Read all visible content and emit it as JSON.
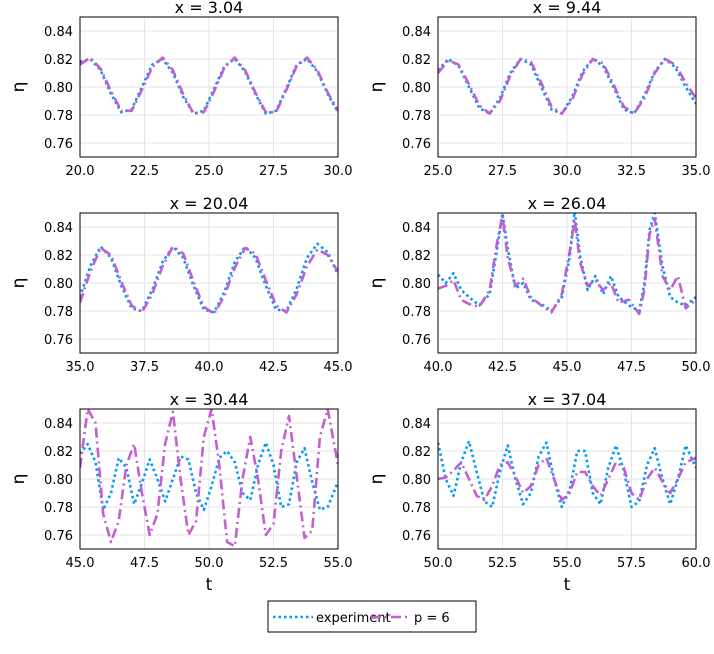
{
  "chart_data": [
    {
      "type": "line",
      "title": "x = 3.04",
      "xlabel": "",
      "ylabel": "η",
      "xlim": [
        20,
        30
      ],
      "ylim": [
        0.75,
        0.85
      ],
      "xticks": [
        "20.0",
        "22.5",
        "25.0",
        "27.5",
        "30.0"
      ],
      "yticks": [
        "0.76",
        "0.78",
        "0.80",
        "0.82",
        "0.84"
      ],
      "series": [
        {
          "name": "experiment",
          "color": "#009af9",
          "style": "dotted",
          "x": [
            20.0,
            20.4,
            20.8,
            21.2,
            21.6,
            22.0,
            22.4,
            22.8,
            23.2,
            23.6,
            24.0,
            24.4,
            24.8,
            25.2,
            25.6,
            26.0,
            26.4,
            26.8,
            27.2,
            27.6,
            28.0,
            28.4,
            28.8,
            29.2,
            29.6,
            30.0
          ],
          "y": [
            0.818,
            0.82,
            0.812,
            0.795,
            0.782,
            0.784,
            0.8,
            0.816,
            0.82,
            0.81,
            0.793,
            0.781,
            0.783,
            0.799,
            0.815,
            0.82,
            0.811,
            0.795,
            0.781,
            0.783,
            0.799,
            0.816,
            0.82,
            0.811,
            0.795,
            0.782
          ]
        },
        {
          "name": "p = 6",
          "color": "#c35fcf",
          "style": "dashdot",
          "x": [
            20.0,
            20.4,
            20.8,
            21.2,
            21.6,
            22.0,
            22.4,
            22.8,
            23.2,
            23.6,
            24.0,
            24.4,
            24.8,
            25.2,
            25.6,
            26.0,
            26.4,
            26.8,
            27.2,
            27.6,
            28.0,
            28.4,
            28.8,
            29.2,
            29.6,
            30.0
          ],
          "y": [
            0.816,
            0.821,
            0.813,
            0.797,
            0.783,
            0.783,
            0.798,
            0.814,
            0.821,
            0.812,
            0.795,
            0.781,
            0.782,
            0.797,
            0.814,
            0.821,
            0.812,
            0.796,
            0.782,
            0.782,
            0.798,
            0.815,
            0.821,
            0.812,
            0.796,
            0.783
          ]
        }
      ]
    },
    {
      "type": "line",
      "title": "x = 9.44",
      "xlabel": "",
      "ylabel": "η",
      "xlim": [
        25,
        35
      ],
      "ylim": [
        0.75,
        0.85
      ],
      "xticks": [
        "25.0",
        "27.5",
        "30.0",
        "32.5",
        "35.0"
      ],
      "yticks": [
        "0.76",
        "0.78",
        "0.80",
        "0.82",
        "0.84"
      ],
      "series": [
        {
          "name": "experiment",
          "color": "#009af9",
          "style": "dotted",
          "x": [
            25.0,
            25.4,
            25.8,
            26.2,
            26.6,
            27.0,
            27.4,
            27.8,
            28.2,
            28.6,
            29.0,
            29.4,
            29.8,
            30.2,
            30.6,
            31.0,
            31.4,
            31.8,
            32.2,
            32.6,
            33.0,
            33.4,
            33.8,
            34.2,
            34.6,
            35.0
          ],
          "y": [
            0.812,
            0.82,
            0.815,
            0.8,
            0.785,
            0.781,
            0.792,
            0.81,
            0.82,
            0.816,
            0.8,
            0.784,
            0.781,
            0.793,
            0.811,
            0.82,
            0.815,
            0.8,
            0.784,
            0.781,
            0.794,
            0.811,
            0.82,
            0.814,
            0.8,
            0.788
          ]
        },
        {
          "name": "p = 6",
          "color": "#c35fcf",
          "style": "dashdot",
          "x": [
            25.0,
            25.4,
            25.8,
            26.2,
            26.6,
            27.0,
            27.4,
            27.8,
            28.2,
            28.6,
            29.0,
            29.4,
            29.8,
            30.2,
            30.6,
            31.0,
            31.4,
            31.8,
            32.2,
            32.6,
            33.0,
            33.4,
            33.8,
            34.2,
            34.6,
            35.0
          ],
          "y": [
            0.81,
            0.819,
            0.816,
            0.802,
            0.787,
            0.781,
            0.79,
            0.808,
            0.82,
            0.818,
            0.803,
            0.786,
            0.781,
            0.791,
            0.809,
            0.82,
            0.817,
            0.802,
            0.786,
            0.781,
            0.792,
            0.81,
            0.82,
            0.816,
            0.803,
            0.792
          ]
        }
      ]
    },
    {
      "type": "line",
      "title": "x = 20.04",
      "xlabel": "",
      "ylabel": "η",
      "xlim": [
        35,
        45
      ],
      "ylim": [
        0.75,
        0.85
      ],
      "xticks": [
        "35.0",
        "37.5",
        "40.0",
        "42.5",
        "45.0"
      ],
      "yticks": [
        "0.76",
        "0.78",
        "0.80",
        "0.82",
        "0.84"
      ],
      "series": [
        {
          "name": "experiment",
          "color": "#009af9",
          "style": "dotted",
          "x": [
            35.0,
            35.4,
            35.8,
            36.2,
            36.6,
            37.0,
            37.4,
            37.8,
            38.2,
            38.6,
            39.0,
            39.4,
            39.8,
            40.2,
            40.6,
            41.0,
            41.4,
            41.8,
            42.2,
            42.6,
            43.0,
            43.4,
            43.8,
            44.2,
            44.6,
            45.0
          ],
          "y": [
            0.79,
            0.812,
            0.826,
            0.818,
            0.798,
            0.782,
            0.78,
            0.795,
            0.815,
            0.826,
            0.818,
            0.798,
            0.781,
            0.779,
            0.794,
            0.815,
            0.826,
            0.818,
            0.798,
            0.781,
            0.78,
            0.796,
            0.818,
            0.828,
            0.822,
            0.806
          ]
        },
        {
          "name": "p = 6",
          "color": "#c35fcf",
          "style": "dashdot",
          "x": [
            35.0,
            35.4,
            35.8,
            36.2,
            36.6,
            37.0,
            37.4,
            37.8,
            38.2,
            38.6,
            39.0,
            39.4,
            39.8,
            40.2,
            40.6,
            41.0,
            41.4,
            41.8,
            42.2,
            42.6,
            43.0,
            43.4,
            43.8,
            44.2,
            44.6,
            45.0
          ],
          "y": [
            0.786,
            0.808,
            0.825,
            0.82,
            0.801,
            0.784,
            0.779,
            0.792,
            0.812,
            0.826,
            0.821,
            0.801,
            0.783,
            0.778,
            0.791,
            0.811,
            0.825,
            0.821,
            0.802,
            0.784,
            0.779,
            0.792,
            0.812,
            0.824,
            0.82,
            0.808
          ]
        }
      ]
    },
    {
      "type": "line",
      "title": "x = 26.04",
      "xlabel": "",
      "ylabel": "η",
      "xlim": [
        40,
        50
      ],
      "ylim": [
        0.75,
        0.85
      ],
      "xticks": [
        "40.0",
        "42.5",
        "45.0",
        "47.5",
        "50.0"
      ],
      "yticks": [
        "0.76",
        "0.78",
        "0.80",
        "0.82",
        "0.84"
      ],
      "series": [
        {
          "name": "experiment",
          "color": "#009af9",
          "style": "dotted",
          "x": [
            40.0,
            40.3,
            40.6,
            40.9,
            41.2,
            41.6,
            42.0,
            42.3,
            42.5,
            42.7,
            43.0,
            43.3,
            43.6,
            44.0,
            44.4,
            44.8,
            45.1,
            45.3,
            45.5,
            45.8,
            46.1,
            46.4,
            46.7,
            47.0,
            47.4,
            47.8,
            48.0,
            48.2,
            48.4,
            48.7,
            49.0,
            49.3,
            49.6,
            50.0
          ],
          "y": [
            0.806,
            0.8,
            0.807,
            0.795,
            0.79,
            0.784,
            0.792,
            0.825,
            0.85,
            0.825,
            0.796,
            0.8,
            0.788,
            0.785,
            0.78,
            0.79,
            0.818,
            0.851,
            0.82,
            0.795,
            0.805,
            0.792,
            0.805,
            0.79,
            0.784,
            0.78,
            0.8,
            0.838,
            0.85,
            0.812,
            0.79,
            0.786,
            0.784,
            0.79
          ]
        },
        {
          "name": "p = 6",
          "color": "#c35fcf",
          "style": "dashdot",
          "x": [
            40.0,
            40.3,
            40.6,
            40.9,
            41.2,
            41.6,
            42.0,
            42.3,
            42.5,
            42.7,
            43.0,
            43.3,
            43.6,
            44.0,
            44.4,
            44.8,
            45.1,
            45.3,
            45.5,
            45.8,
            46.1,
            46.4,
            46.7,
            47.0,
            47.4,
            47.8,
            48.0,
            48.2,
            48.4,
            48.7,
            49.0,
            49.3,
            49.6,
            50.0
          ],
          "y": [
            0.796,
            0.798,
            0.802,
            0.788,
            0.785,
            0.783,
            0.795,
            0.83,
            0.848,
            0.818,
            0.798,
            0.803,
            0.79,
            0.784,
            0.779,
            0.792,
            0.822,
            0.845,
            0.815,
            0.798,
            0.802,
            0.795,
            0.8,
            0.786,
            0.788,
            0.778,
            0.795,
            0.835,
            0.846,
            0.805,
            0.795,
            0.805,
            0.782,
            0.788
          ]
        }
      ]
    },
    {
      "type": "line",
      "title": "x = 30.44",
      "xlabel": "t",
      "ylabel": "η",
      "xlim": [
        45,
        55
      ],
      "ylim": [
        0.75,
        0.85
      ],
      "xticks": [
        "45.0",
        "47.5",
        "50.0",
        "52.5",
        "55.0"
      ],
      "yticks": [
        "0.76",
        "0.78",
        "0.80",
        "0.82",
        "0.84"
      ],
      "series": [
        {
          "name": "experiment",
          "color": "#009af9",
          "style": "dotted",
          "x": [
            45.0,
            45.3,
            45.6,
            45.9,
            46.2,
            46.5,
            46.8,
            47.1,
            47.4,
            47.7,
            48.0,
            48.3,
            48.6,
            48.9,
            49.2,
            49.5,
            49.8,
            50.1,
            50.4,
            50.7,
            51.0,
            51.3,
            51.6,
            51.9,
            52.2,
            52.5,
            52.8,
            53.1,
            53.4,
            53.7,
            54.0,
            54.3,
            54.6,
            55.0
          ],
          "y": [
            0.818,
            0.825,
            0.812,
            0.778,
            0.79,
            0.815,
            0.808,
            0.782,
            0.797,
            0.814,
            0.8,
            0.784,
            0.8,
            0.816,
            0.814,
            0.79,
            0.778,
            0.795,
            0.815,
            0.82,
            0.812,
            0.79,
            0.785,
            0.81,
            0.826,
            0.81,
            0.78,
            0.782,
            0.812,
            0.822,
            0.798,
            0.778,
            0.78,
            0.798
          ]
        },
        {
          "name": "p = 6",
          "color": "#c35fcf",
          "style": "dashdot",
          "x": [
            45.0,
            45.3,
            45.6,
            45.9,
            46.2,
            46.5,
            46.8,
            47.1,
            47.4,
            47.7,
            48.0,
            48.3,
            48.6,
            48.9,
            49.2,
            49.5,
            49.8,
            50.1,
            50.4,
            50.7,
            51.0,
            51.3,
            51.6,
            51.9,
            52.2,
            52.5,
            52.8,
            53.1,
            53.4,
            53.7,
            54.0,
            54.3,
            54.6,
            55.0
          ],
          "y": [
            0.808,
            0.85,
            0.84,
            0.775,
            0.755,
            0.77,
            0.81,
            0.825,
            0.79,
            0.76,
            0.775,
            0.825,
            0.848,
            0.8,
            0.76,
            0.77,
            0.83,
            0.85,
            0.81,
            0.755,
            0.752,
            0.8,
            0.83,
            0.8,
            0.76,
            0.768,
            0.82,
            0.845,
            0.802,
            0.758,
            0.763,
            0.83,
            0.85,
            0.81
          ]
        }
      ]
    },
    {
      "type": "line",
      "title": "x = 37.04",
      "xlabel": "t",
      "ylabel": "η",
      "xlim": [
        50,
        60
      ],
      "ylim": [
        0.75,
        0.85
      ],
      "xticks": [
        "50.0",
        "52.5",
        "55.0",
        "57.5",
        "60.0"
      ],
      "yticks": [
        "0.76",
        "0.78",
        "0.80",
        "0.82",
        "0.84"
      ],
      "series": [
        {
          "name": "experiment",
          "color": "#009af9",
          "style": "dotted",
          "x": [
            50.0,
            50.3,
            50.6,
            50.9,
            51.2,
            51.5,
            51.8,
            52.1,
            52.4,
            52.7,
            53.0,
            53.3,
            53.6,
            53.9,
            54.2,
            54.5,
            54.8,
            55.1,
            55.4,
            55.7,
            56.0,
            56.3,
            56.6,
            56.9,
            57.2,
            57.5,
            57.8,
            58.1,
            58.4,
            58.7,
            59.0,
            59.3,
            59.6,
            60.0
          ],
          "y": [
            0.826,
            0.8,
            0.788,
            0.812,
            0.827,
            0.805,
            0.784,
            0.78,
            0.805,
            0.824,
            0.8,
            0.782,
            0.79,
            0.816,
            0.826,
            0.8,
            0.78,
            0.792,
            0.82,
            0.82,
            0.79,
            0.782,
            0.808,
            0.824,
            0.806,
            0.78,
            0.784,
            0.81,
            0.822,
            0.8,
            0.782,
            0.8,
            0.824,
            0.808
          ]
        },
        {
          "name": "p = 6",
          "color": "#c35fcf",
          "style": "dashdot",
          "x": [
            50.0,
            50.3,
            50.6,
            50.9,
            51.2,
            51.5,
            51.8,
            52.1,
            52.4,
            52.7,
            53.0,
            53.3,
            53.6,
            53.9,
            54.2,
            54.5,
            54.8,
            55.1,
            55.4,
            55.7,
            56.0,
            56.3,
            56.6,
            56.9,
            57.2,
            57.5,
            57.8,
            58.1,
            58.4,
            58.7,
            59.0,
            59.3,
            59.6,
            60.0
          ],
          "y": [
            0.8,
            0.801,
            0.806,
            0.812,
            0.8,
            0.788,
            0.785,
            0.795,
            0.81,
            0.812,
            0.802,
            0.79,
            0.795,
            0.81,
            0.815,
            0.8,
            0.785,
            0.79,
            0.805,
            0.805,
            0.795,
            0.788,
            0.8,
            0.812,
            0.808,
            0.79,
            0.785,
            0.8,
            0.808,
            0.798,
            0.79,
            0.8,
            0.812,
            0.815
          ]
        }
      ]
    }
  ],
  "legend": {
    "placement": "bottom-center",
    "entries": [
      {
        "label": "experiment",
        "color": "#009af9",
        "style": "dotted"
      },
      {
        "label": "p = 6",
        "color": "#c35fcf",
        "style": "dashdot"
      }
    ]
  }
}
